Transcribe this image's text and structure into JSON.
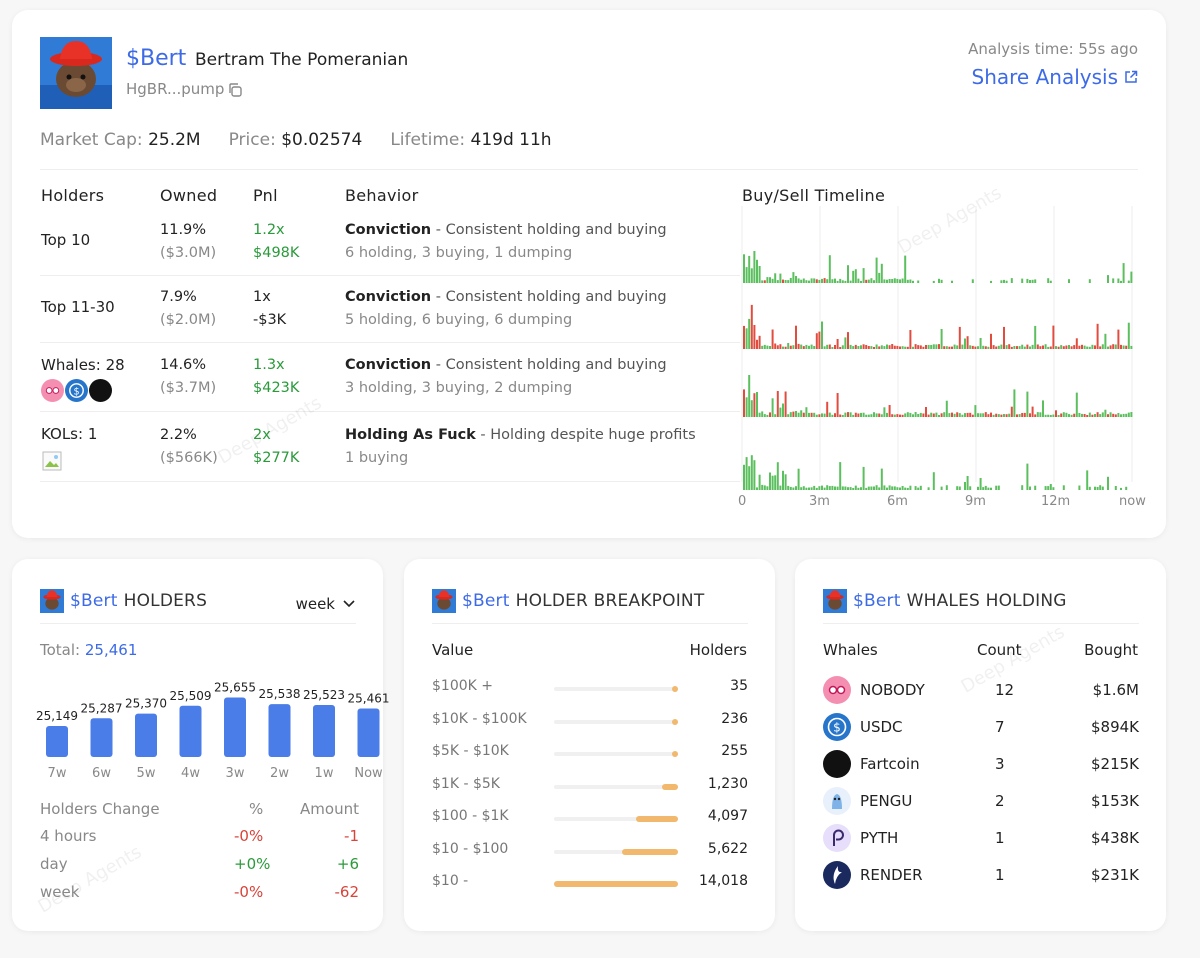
{
  "token": {
    "ticker": "$Bert",
    "name": "Bertram The Pomeranian",
    "address": "HgBR...pump",
    "analysis_time": "Analysis time: 55s ago",
    "share_label": "Share Analysis"
  },
  "stats": [
    {
      "label": "Market Cap:",
      "value": "25.2M"
    },
    {
      "label": "Price:",
      "value": "$0.02574"
    },
    {
      "label": "Lifetime:",
      "value": "419d 11h"
    }
  ],
  "table": {
    "headers": [
      "Holders",
      "Owned",
      "Pnl",
      "Behavior",
      "Buy/Sell Timeline"
    ],
    "rows": [
      {
        "label": "Top 10",
        "owned_pct": "11.9%",
        "owned_usd": "($3.0M)",
        "pnl_x": "1.2x",
        "pnl_usd": "$498K",
        "pnl_color": "green",
        "behavior_title": "Conviction",
        "behavior_desc": " - Consistent holding and buying",
        "behavior_sub": "6 holding, 3 buying, 1 dumping"
      },
      {
        "label": "Top 11-30",
        "owned_pct": "7.9%",
        "owned_usd": "($2.0M)",
        "pnl_x": "1x",
        "pnl_usd": "-$3K",
        "pnl_color": "neutral",
        "behavior_title": "Conviction",
        "behavior_desc": " - Consistent holding and buying",
        "behavior_sub": "5 holding, 6 buying, 6 dumping"
      },
      {
        "label": "Whales: 28",
        "owned_pct": "14.6%",
        "owned_usd": "($3.7M)",
        "pnl_x": "1.3x",
        "pnl_usd": "$423K",
        "pnl_color": "green",
        "behavior_title": "Conviction",
        "behavior_desc": " - Consistent holding and buying",
        "behavior_sub": "3 holding, 3 buying, 2 dumping"
      },
      {
        "label": "KOLs: 1",
        "owned_pct": "2.2%",
        "owned_usd": "($566K)",
        "pnl_x": "2x",
        "pnl_usd": "$277K",
        "pnl_color": "green",
        "behavior_title": "Holding As Fuck",
        "behavior_desc": " - Holding despite huge profits",
        "behavior_sub": "1 buying"
      }
    ],
    "timeline_axis": [
      "0",
      "3m",
      "6m",
      "9m",
      "12m",
      "now"
    ]
  },
  "holders_card": {
    "title_ticker": "$Bert",
    "title": "HOLDERS",
    "period": "week",
    "total_label": "Total:",
    "total_value": "25,461",
    "bars": [
      {
        "label": "7w",
        "value": 25149,
        "display": "25,149"
      },
      {
        "label": "6w",
        "value": 25287,
        "display": "25,287"
      },
      {
        "label": "5w",
        "value": 25370,
        "display": "25,370"
      },
      {
        "label": "4w",
        "value": 25509,
        "display": "25,509"
      },
      {
        "label": "3w",
        "value": 25655,
        "display": "25,655"
      },
      {
        "label": "2w",
        "value": 25538,
        "display": "25,538"
      },
      {
        "label": "1w",
        "value": 25523,
        "display": "25,523"
      },
      {
        "label": "Now",
        "value": 25461,
        "display": "25,461"
      }
    ],
    "change_headers": [
      "Holders Change",
      "%",
      "Amount"
    ],
    "changes": [
      {
        "period": "4 hours",
        "pct": "-0%",
        "amount": "-1",
        "color": "red"
      },
      {
        "period": "day",
        "pct": "+0%",
        "amount": "+6",
        "color": "green"
      },
      {
        "period": "week",
        "pct": "-0%",
        "amount": "-62",
        "color": "red"
      }
    ]
  },
  "breakpoint_card": {
    "title_ticker": "$Bert",
    "title": "HOLDER BREAKPOINT",
    "headers": [
      "Value",
      "Holders"
    ],
    "rows": [
      {
        "range": "$100K +",
        "count": "35",
        "fraction": 0.03
      },
      {
        "range": "$10K - $100K",
        "count": "236",
        "fraction": 0.03
      },
      {
        "range": "$5K - $10K",
        "count": "255",
        "fraction": 0.03
      },
      {
        "range": "$1K - $5K",
        "count": "1,230",
        "fraction": 0.13
      },
      {
        "range": "$100 - $1K",
        "count": "4,097",
        "fraction": 0.34
      },
      {
        "range": "$10 - $100",
        "count": "5,622",
        "fraction": 0.45
      },
      {
        "range": "$10 -",
        "count": "14,018",
        "fraction": 1.0
      }
    ]
  },
  "whales_card": {
    "title_ticker": "$Bert",
    "title": "WHALES HOLDING",
    "headers": [
      "Whales",
      "Count",
      "Bought"
    ],
    "rows": [
      {
        "name": "NOBODY",
        "count": "12",
        "bought": "$1.6M",
        "icon": "nobody-icon",
        "color": "#f48fb1"
      },
      {
        "name": "USDC",
        "count": "7",
        "bought": "$894K",
        "icon": "usdc-icon",
        "color": "#2775ca"
      },
      {
        "name": "Fartcoin",
        "count": "3",
        "bought": "$215K",
        "icon": "fartcoin-icon",
        "color": "#111111"
      },
      {
        "name": "PENGU",
        "count": "2",
        "bought": "$153K",
        "icon": "pengu-icon",
        "color": "#e8f0fb"
      },
      {
        "name": "PYTH",
        "count": "1",
        "bought": "$438K",
        "icon": "pyth-icon",
        "color": "#e6defa"
      },
      {
        "name": "RENDER",
        "count": "1",
        "bought": "$231K",
        "icon": "render-icon",
        "color": "#1a2a5e"
      }
    ]
  }
}
